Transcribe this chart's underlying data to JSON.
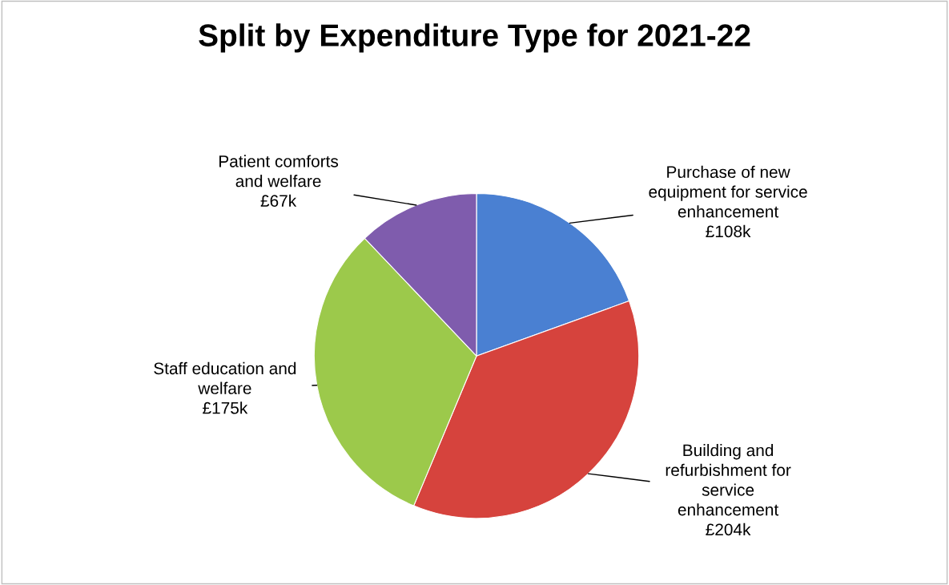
{
  "chart_data": {
    "type": "pie",
    "title": "Split by Expenditure Type for 2021-22",
    "categories": [
      "Purchase of new\nequipment for service\nenhancement",
      "Building and\nrefurbishment for\nservice\nenhancement",
      "Staff education and\nwelfare",
      "Patient comforts\nand welfare"
    ],
    "values": [
      108,
      204,
      175,
      67
    ],
    "value_labels": [
      "£108k",
      "£204k",
      "£175k",
      "£67k"
    ],
    "colors": [
      "#4a80d2",
      "#d6433d",
      "#9cc94b",
      "#7f5cad"
    ]
  }
}
